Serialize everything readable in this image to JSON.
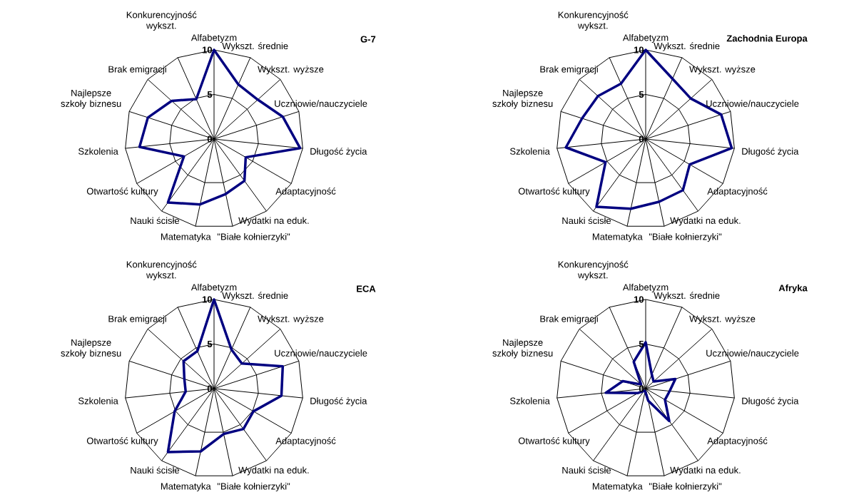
{
  "chart_data": [
    {
      "type": "radar",
      "title": "G-7",
      "grid": true,
      "ylim": [
        0,
        10
      ],
      "yticks": [
        0,
        5,
        10
      ],
      "categories": [
        "Alfabetyzm",
        "Wykszt. średnie",
        "Wykszt. wyższe",
        "Uczniowie/nauczyciele",
        "Długość życia",
        "Adaptacyjność",
        "Wydatki na eduk.",
        "\"Białe kołnierzyki\"",
        "Matematyka",
        "Nauki ścisłe",
        "Otwartość kultury",
        "Szkolenia",
        "Najlepsze szkoły biznesu",
        "Brak emigracji",
        "Konkurencyjność wykszt."
      ],
      "series": [
        {
          "color": "#000080",
          "values": [
            10,
            6.7,
            6.6,
            8.1,
            9.7,
            4.1,
            5.8,
            6.3,
            7.5,
            8.8,
            3.9,
            8.4,
            7.8,
            6.4,
            4.9
          ]
        }
      ]
    },
    {
      "type": "radar",
      "title": "Zachodnia Europa",
      "grid": true,
      "ylim": [
        0,
        10
      ],
      "yticks": [
        0,
        5,
        10
      ],
      "categories": [
        "Alfabetyzm",
        "Wykszt. średnie",
        "Wykszt. wyższe",
        "Uczniowie/nauczyciele",
        "Długość życia",
        "Adaptacyjność",
        "Wydatki na eduk.",
        "\"Białe kołnierzyki\"",
        "Matematyka",
        "Nauki ścisłe",
        "Otwartość kultury",
        "Szkolenia",
        "Najlepsze szkoły biznesu",
        "Brak emigracji",
        "Konkurencyjność wykszt."
      ],
      "series": [
        {
          "color": "#000080",
          "values": [
            10,
            7.4,
            6.8,
            8.9,
            9.7,
            5.7,
            7.1,
            7.2,
            8.0,
            9.4,
            5.2,
            9.0,
            7.5,
            7.2,
            6.8
          ]
        }
      ]
    },
    {
      "type": "radar",
      "title": "ECA",
      "grid": true,
      "ylim": [
        0,
        10
      ],
      "yticks": [
        0,
        5,
        10
      ],
      "categories": [
        "Alfabetyzm",
        "Wykszt. średnie",
        "Wykszt. wyższe",
        "Uczniowie/nauczyciele",
        "Długość życia",
        "Adaptacyjność",
        "Wydatki na eduk.",
        "\"Białe kołnierzyki\"",
        "Matematyka",
        "Nauki ścisłe",
        "Otwartość kultury",
        "Szkolenia",
        "Najlepsze szkoły biznesu",
        "Brak emigracji",
        "Konkurencyjność wykszt."
      ],
      "series": [
        {
          "color": "#000080",
          "values": [
            10,
            4.8,
            4.2,
            8.1,
            7.6,
            5.1,
            5.6,
            5.2,
            7.2,
            8.8,
            5.1,
            3.2,
            3.5,
            4.6,
            4.6
          ]
        }
      ]
    },
    {
      "type": "radar",
      "title": "Afryka",
      "grid": true,
      "ylim": [
        0,
        10
      ],
      "yticks": [
        0,
        5,
        10
      ],
      "categories": [
        "Alfabetyzm",
        "Wykszt. średnie",
        "Wykszt. wyższe",
        "Uczniowie/nauczyciele",
        "Długość życia",
        "Adaptacyjność",
        "Wydatki na eduk.",
        "\"Białe kołnierzyki\"",
        "Matematyka",
        "Nauki ścisłe",
        "Otwartość kultury",
        "Szkolenia",
        "Najlepsze szkoły biznesu",
        "Brak emigracji",
        "Konkurencyjność wykszt."
      ],
      "series": [
        {
          "color": "#000080",
          "values": [
            5.2,
            1.7,
            1.2,
            3.5,
            2.7,
            2.5,
            4.5,
            1.4,
            0.3,
            0.3,
            1.0,
            4.5,
            2.7,
            0.7,
            3.3
          ]
        }
      ]
    }
  ]
}
